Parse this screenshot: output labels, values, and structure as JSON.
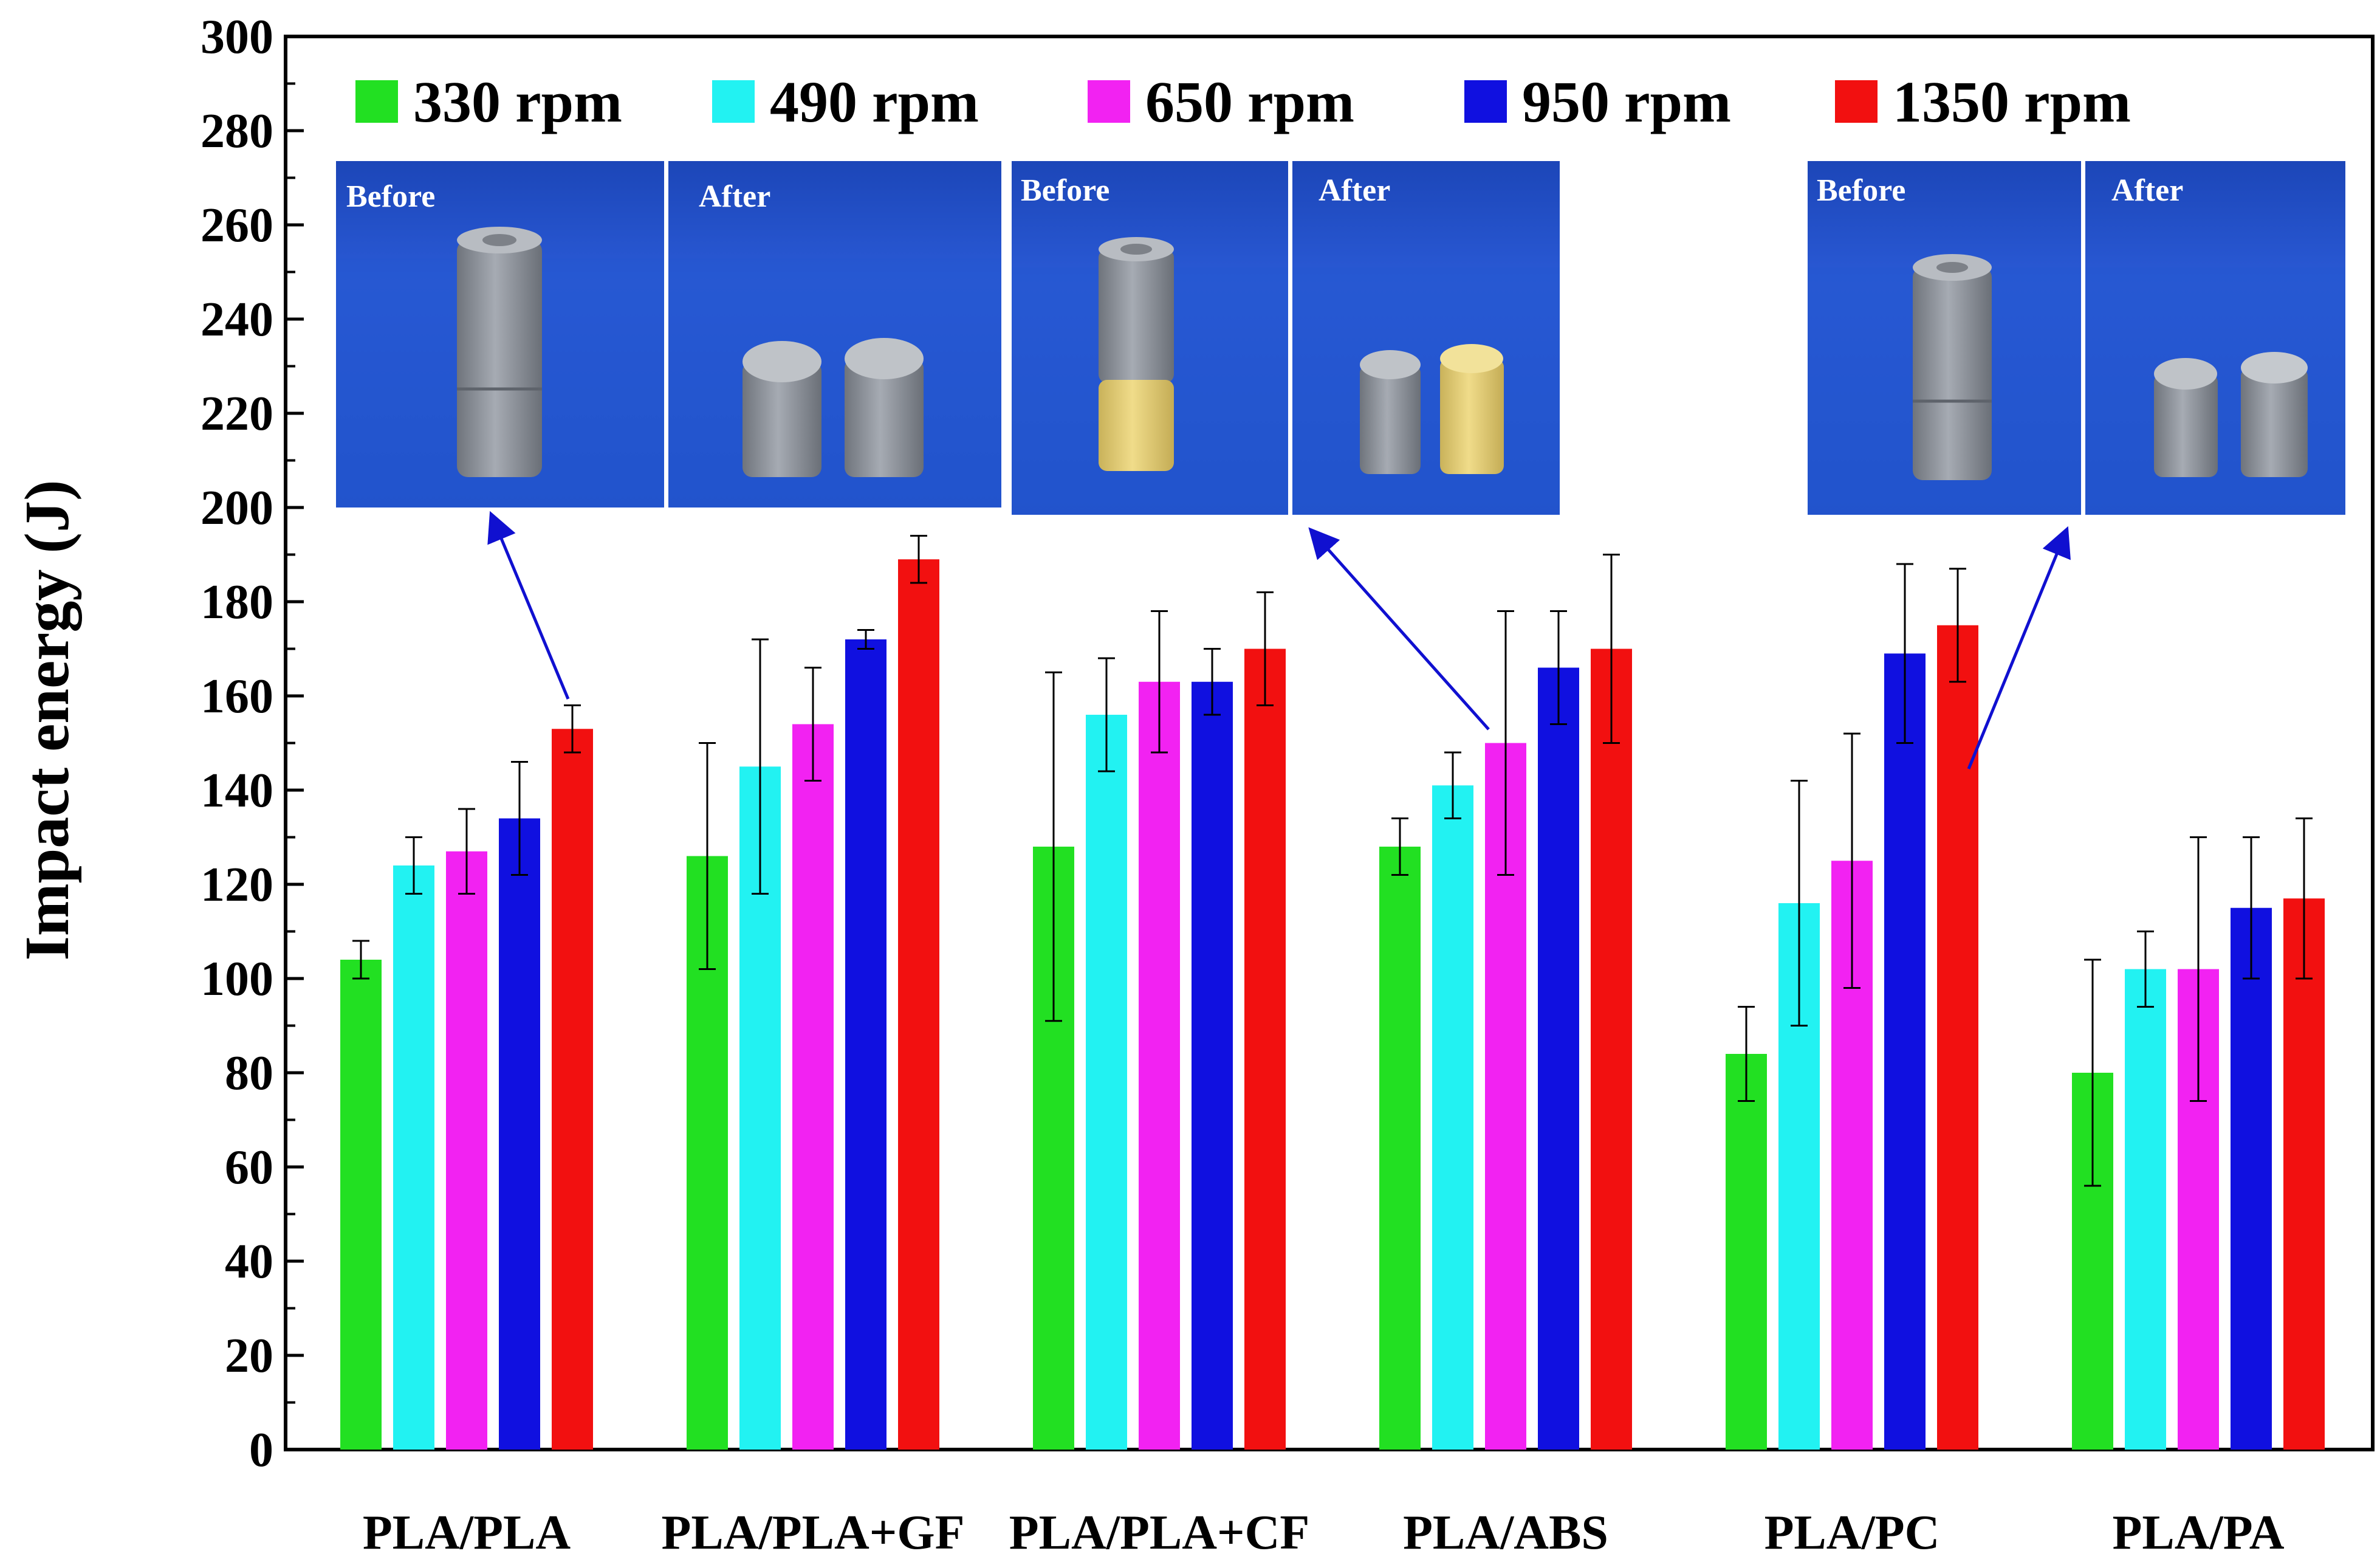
{
  "chart_data": {
    "type": "bar",
    "ylabel": "Impact energy (J)",
    "xlabel": "",
    "ylim": [
      0,
      300
    ],
    "yticks": [
      0,
      20,
      40,
      60,
      80,
      100,
      120,
      140,
      160,
      180,
      200,
      220,
      240,
      260,
      280,
      300
    ],
    "categories": [
      "PLA/PLA",
      "PLA/PLA+GF",
      "PLA/PLA+CF",
      "PLA/ABS",
      "PLA/PC",
      "PLA/PA"
    ],
    "legend_position": "top",
    "error_bars": true,
    "series": [
      {
        "name": "330 rpm",
        "color": "#22e022",
        "values": [
          104,
          126,
          128,
          128,
          84,
          80
        ],
        "errors": [
          4,
          24,
          37,
          6,
          10,
          24
        ]
      },
      {
        "name": "490 rpm",
        "color": "#22f2f2",
        "values": [
          124,
          145,
          156,
          141,
          116,
          102
        ],
        "errors": [
          6,
          27,
          12,
          7,
          26,
          8
        ]
      },
      {
        "name": "650 rpm",
        "color": "#f222f2",
        "values": [
          127,
          154,
          163,
          150,
          125,
          102
        ],
        "errors": [
          9,
          12,
          15,
          28,
          27,
          28
        ]
      },
      {
        "name": "950 rpm",
        "color": "#1010e0",
        "values": [
          134,
          172,
          163,
          166,
          169,
          115
        ],
        "errors": [
          12,
          2,
          7,
          12,
          19,
          15
        ]
      },
      {
        "name": "1350 rpm",
        "color": "#f21010",
        "values": [
          153,
          189,
          170,
          170,
          175,
          117
        ],
        "errors": [
          5,
          5,
          12,
          20,
          12,
          17
        ]
      }
    ]
  },
  "inset_photos": [
    {
      "before_label": "Before",
      "after_label": "After"
    },
    {
      "before_label": "Before",
      "after_label": "After"
    },
    {
      "before_label": "Before",
      "after_label": "After"
    }
  ]
}
